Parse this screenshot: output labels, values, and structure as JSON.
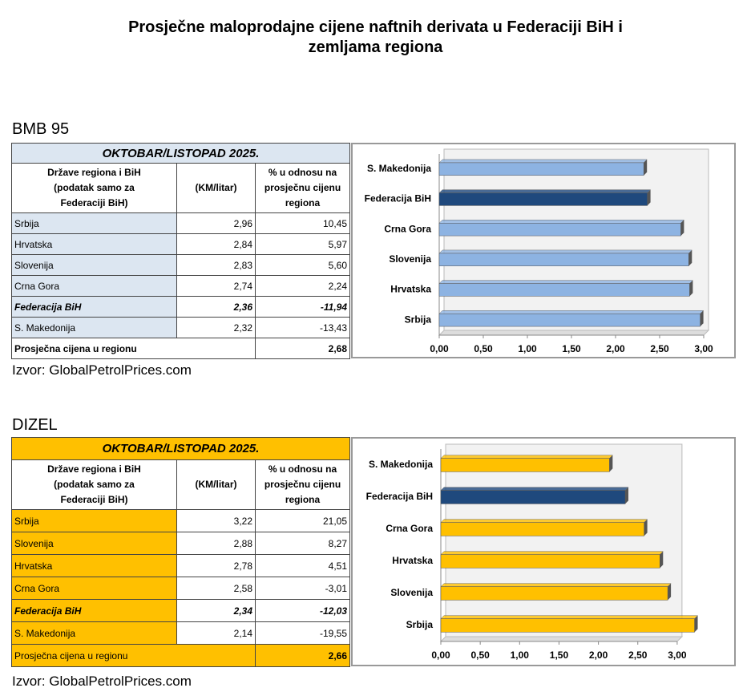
{
  "title_lines": [
    "Prosječne maloprodajne cijene naftnih derivata u Federaciji BiH i",
    "zemljama regiona"
  ],
  "sections": [
    {
      "label": "BMB 95",
      "table": {
        "period": "OKTOBAR/LISTOPAD 2025.",
        "columns": [
          [
            "Države regiona i BiH",
            "(podatak samo za",
            "Federaciji BiH)"
          ],
          [
            "(KM/litar)"
          ],
          [
            "% u odnosu na",
            "prosječnu cijenu",
            "regiona"
          ]
        ],
        "rows": [
          [
            "Srbija",
            "2,96",
            "10,45"
          ],
          [
            "Hrvatska",
            "2,84",
            "5,97"
          ],
          [
            "Slovenija",
            "2,83",
            "5,60"
          ],
          [
            "Crna Gora",
            "2,74",
            "2,24"
          ],
          [
            "Federacija BiH",
            "2,36",
            "-11,94"
          ],
          [
            "S. Makedonija",
            "2,32",
            "-13,43"
          ]
        ],
        "average": {
          "label": "Prosječna cijena u regionu",
          "value": "2,68"
        }
      },
      "chart_data": {
        "type": "bar",
        "orientation": "horizontal",
        "categories": [
          "S. Makedonija",
          "Federacija BiH",
          "Crna Gora",
          "Slovenija",
          "Hrvatska",
          "Srbija"
        ],
        "values": [
          2.32,
          2.36,
          2.74,
          2.83,
          2.84,
          2.96
        ],
        "colors": [
          "#8db3e2",
          "#1f497d",
          "#8db3e2",
          "#8db3e2",
          "#8db3e2",
          "#8db3e2"
        ],
        "xlim": [
          0,
          3
        ],
        "xticks": [
          {
            "value": 0,
            "label": "0,00"
          },
          {
            "value": 0.5,
            "label": "0,50"
          },
          {
            "value": 1,
            "label": "1,00"
          },
          {
            "value": 1.5,
            "label": "1,50"
          },
          {
            "value": 2,
            "label": "2,00"
          },
          {
            "value": 2.5,
            "label": "2,50"
          },
          {
            "value": 3,
            "label": "3,00"
          }
        ]
      },
      "source": "Izvor: GlobalPetrolPrices.com"
    },
    {
      "label": "DIZEL",
      "table": {
        "period": "OKTOBAR/LISTOPAD 2025.",
        "columns": [
          [
            "Države regiona i BiH",
            "(podatak samo za",
            "Federaciji BiH)"
          ],
          [
            "(KM/litar)"
          ],
          [
            "% u odnosu na",
            "prosječnu cijenu",
            "regiona"
          ]
        ],
        "rows": [
          [
            "Srbija",
            "3,22",
            "21,05"
          ],
          [
            "Slovenija",
            "2,88",
            "8,27"
          ],
          [
            "Hrvatska",
            "2,78",
            "4,51"
          ],
          [
            "Crna Gora",
            "2,58",
            "-3,01"
          ],
          [
            "Federacija BiH",
            "2,34",
            "-12,03"
          ],
          [
            "S. Makedonija",
            "2,14",
            "-19,55"
          ]
        ],
        "average": {
          "label": "Prosječna cijena u regionu",
          "value": "2,66"
        }
      },
      "chart_data": {
        "type": "bar",
        "orientation": "horizontal",
        "categories": [
          "S. Makedonija",
          "Federacija BiH",
          "Crna Gora",
          "Hrvatska",
          "Slovenija",
          "Srbija"
        ],
        "values": [
          2.14,
          2.34,
          2.58,
          2.78,
          2.88,
          3.22
        ],
        "colors": [
          "#ffc000",
          "#1f497d",
          "#ffc000",
          "#ffc000",
          "#ffc000",
          "#ffc000"
        ],
        "xlim": [
          0,
          3
        ],
        "xticks": [
          {
            "value": 0,
            "label": "0,00"
          },
          {
            "value": 0.5,
            "label": "0,50"
          },
          {
            "value": 1,
            "label": "1,00"
          },
          {
            "value": 1.5,
            "label": "1,50"
          },
          {
            "value": 2,
            "label": "2,00"
          },
          {
            "value": 2.5,
            "label": "2,50"
          },
          {
            "value": 3,
            "label": "3,00"
          }
        ]
      },
      "source": "Izvor: GlobalPetrolPrices.com"
    }
  ]
}
